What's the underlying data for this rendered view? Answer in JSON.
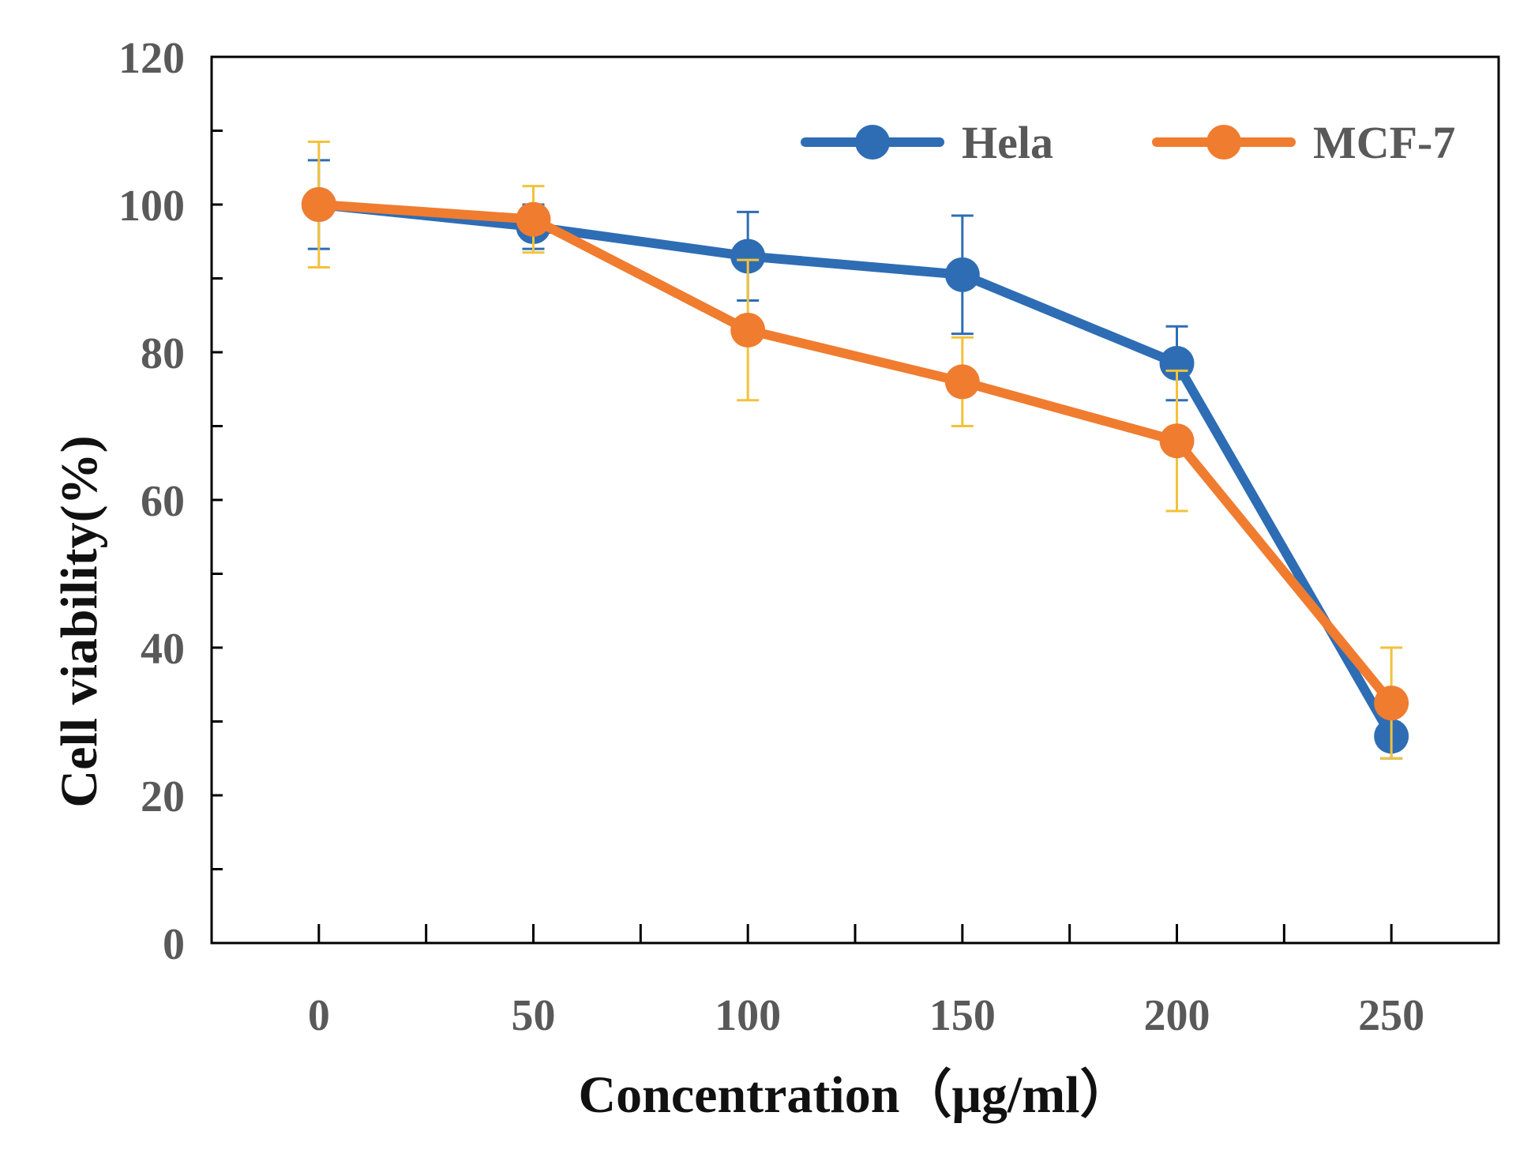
{
  "chart_data": {
    "type": "line",
    "title": "",
    "xlabel": "Concentration（μg/ml）",
    "ylabel": "Cell viability(%)",
    "categories": [
      "0",
      "50",
      "100",
      "150",
      "200",
      "250"
    ],
    "x": [
      0,
      50,
      100,
      150,
      200,
      250
    ],
    "xlim": [
      -25,
      275
    ],
    "ylim": [
      0,
      120
    ],
    "y_ticks": [
      "0",
      "20",
      "40",
      "60",
      "80",
      "100",
      "120"
    ],
    "legend_position": "top-right",
    "grid": false,
    "series": [
      {
        "name": "Hela",
        "color": "#2E6DB4",
        "values": [
          100,
          97,
          93,
          90.5,
          78.5,
          28
        ],
        "errors": [
          6,
          3,
          6,
          8,
          5,
          3
        ]
      },
      {
        "name": "MCF-7",
        "color": "#F07C30",
        "error_color": "#F2C23A",
        "values": [
          100,
          98,
          83,
          76,
          68,
          32.5
        ],
        "errors": [
          8.5,
          4.5,
          9.5,
          6,
          9.5,
          7.5
        ]
      }
    ]
  }
}
